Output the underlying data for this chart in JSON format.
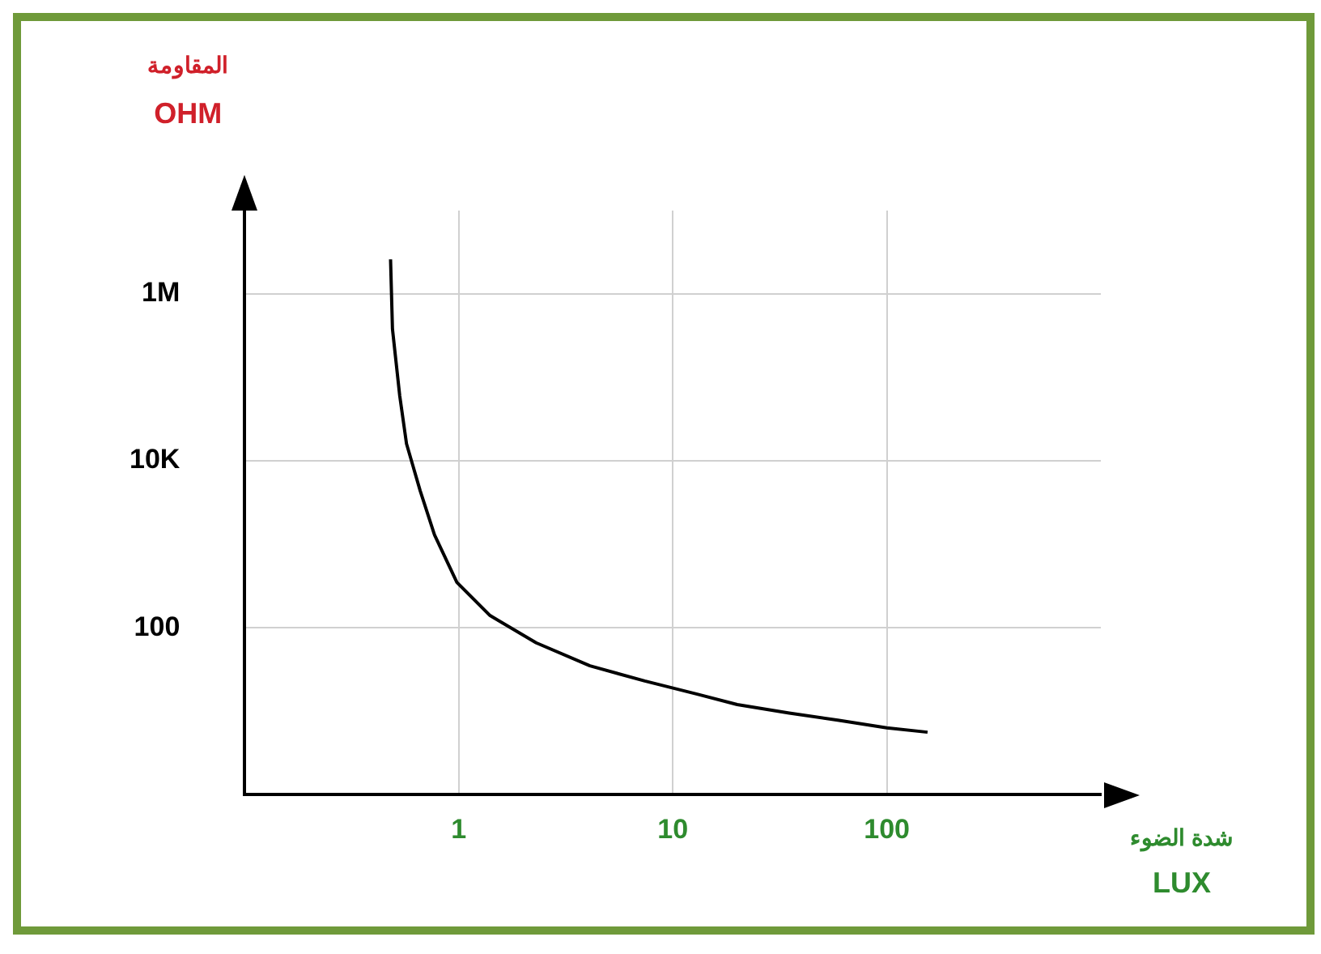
{
  "chart_data": {
    "type": "line",
    "ylabel": "المقاومة\nOHM",
    "xlabel": "شدة الضوء\nLUX",
    "log": "xy",
    "xlim": [
      0.1,
      1000
    ],
    "ylim": [
      1,
      10000000
    ],
    "xticks": [
      1,
      10,
      100
    ],
    "yticks": [
      {
        "value": 100,
        "label": "100"
      },
      {
        "value": 10000,
        "label": "10K"
      },
      {
        "value": 1000000,
        "label": "1M"
      }
    ],
    "grid": true,
    "legend": false,
    "marker": "none",
    "line_style": "solid",
    "series": [
      {
        "color": "#000000",
        "x": [
          0.48,
          0.49,
          0.53,
          0.57,
          0.66,
          0.77,
          0.98,
          1.4,
          2.3,
          4.1,
          7.4,
          13,
          20,
          35,
          59,
          100,
          155
        ],
        "values": [
          2600000,
          380000,
          60000,
          16000,
          4400,
          1300,
          350,
          140,
          66,
          35,
          23,
          16,
          12,
          9.5,
          7.8,
          6.3,
          5.6
        ]
      }
    ]
  }
}
